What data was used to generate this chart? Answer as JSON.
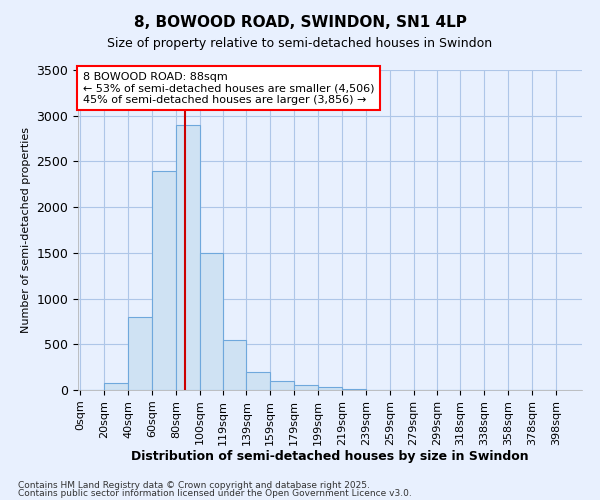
{
  "title": "8, BOWOOD ROAD, SWINDON, SN1 4LP",
  "subtitle": "Size of property relative to semi-detached houses in Swindon",
  "xlabel": "Distribution of semi-detached houses by size in Swindon",
  "ylabel": "Number of semi-detached properties",
  "footnote1": "Contains HM Land Registry data © Crown copyright and database right 2025.",
  "footnote2": "Contains public sector information licensed under the Open Government Licence v3.0.",
  "annotation_title": "8 BOWOOD ROAD: 88sqm",
  "annotation_line1": "← 53% of semi-detached houses are smaller (4,506)",
  "annotation_line2": "45% of semi-detached houses are larger (3,856) →",
  "bar_left_edges": [
    0,
    20,
    40,
    60,
    80,
    100,
    119,
    139,
    159,
    179,
    199,
    219,
    239,
    259,
    279,
    299,
    318,
    338,
    358,
    378
  ],
  "bar_widths": [
    20,
    20,
    20,
    20,
    20,
    19,
    20,
    20,
    20,
    20,
    20,
    20,
    20,
    20,
    20,
    19,
    20,
    20,
    20,
    20
  ],
  "bar_heights": [
    0,
    75,
    800,
    2400,
    2900,
    1500,
    550,
    200,
    100,
    50,
    30,
    10,
    5,
    0,
    0,
    0,
    0,
    5,
    0,
    0
  ],
  "bar_color": "#cfe2f3",
  "bar_edge_color": "#6fa8dc",
  "property_line_x": 88,
  "property_line_color": "#cc0000",
  "ylim": [
    0,
    3500
  ],
  "ytick_step": 500,
  "xlim": [
    -2,
    420
  ],
  "xtick_labels": [
    "0sqm",
    "20sqm",
    "40sqm",
    "60sqm",
    "80sqm",
    "100sqm",
    "119sqm",
    "139sqm",
    "159sqm",
    "179sqm",
    "199sqm",
    "219sqm",
    "239sqm",
    "259sqm",
    "279sqm",
    "299sqm",
    "318sqm",
    "338sqm",
    "358sqm",
    "378sqm",
    "398sqm"
  ],
  "xtick_positions": [
    0,
    20,
    40,
    60,
    80,
    100,
    119,
    139,
    159,
    179,
    199,
    219,
    239,
    259,
    279,
    299,
    318,
    338,
    358,
    378,
    398
  ],
  "background_color": "#e8f0fe",
  "plot_bg_color": "#e8f0fe",
  "grid_color": "#aec6e8",
  "title_fontsize": 11,
  "subtitle_fontsize": 9
}
